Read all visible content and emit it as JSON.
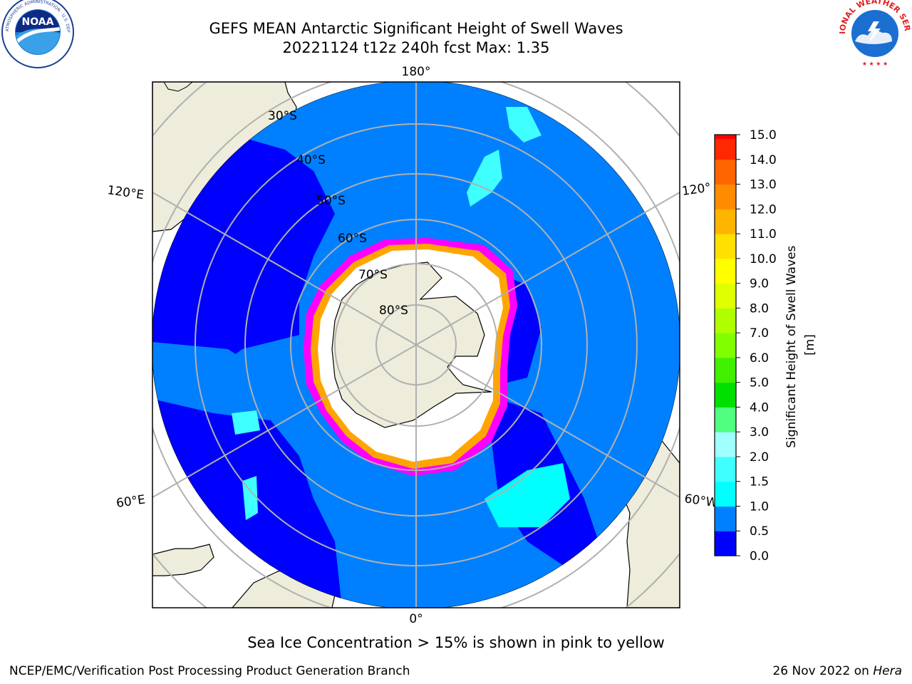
{
  "header": {
    "title_line1": "GEFS MEAN Antarctic Significant Height of Swell Waves",
    "title_line2": "20221124 t12z 240h fcst   Max: 1.35",
    "left_logo_text": "NOAA",
    "left_logo_ring_text": "NATIONAL OCEANIC AND ATMOSPHERIC ADMINISTRATION · U.S. DEPARTMENT OF COMMERCE",
    "right_logo_ring_text": "NATIONAL WEATHER SERVICE"
  },
  "map": {
    "projection": "south-polar-stereographic",
    "meridian_labels": {
      "top": "180°",
      "bottom": "0°",
      "left_upper": "120°E",
      "left_lower": "60°E",
      "right_upper": "120°",
      "right_lower": "60°W"
    },
    "latitude_labels": [
      "30°S",
      "40°S",
      "50°S",
      "60°S",
      "70°S",
      "80°S"
    ],
    "land_color": "#eeecdb",
    "sea_ice_colors": [
      "#ff00ff",
      "#ffa500",
      "#ffff00"
    ]
  },
  "colorbar": {
    "label": "Significant Height of Swell Waves [m]",
    "ticks": [
      "0.0",
      "0.5",
      "1.0",
      "1.5",
      "2.0",
      "3.0",
      "4.0",
      "5.0",
      "6.0",
      "7.0",
      "8.0",
      "9.0",
      "10.0",
      "11.0",
      "12.0",
      "13.0",
      "14.0",
      "15.0"
    ],
    "colors": [
      "#0000ff",
      "#0080ff",
      "#00ffff",
      "#40ffff",
      "#a0ffff",
      "#50ff80",
      "#00e000",
      "#40f000",
      "#80ff00",
      "#b0ff00",
      "#e0ff00",
      "#ffff00",
      "#ffe000",
      "#ffb400",
      "#ff8c00",
      "#ff6400",
      "#ff2800"
    ],
    "top_color": "#ff0000"
  },
  "footer": {
    "note": "Sea Ice Concentration > 15% is shown in pink to yellow",
    "left": "NCEP/EMC/Verification Post Processing Product Generation Branch",
    "right_date": "26 Nov 2022 on ",
    "right_host": "Hera"
  }
}
